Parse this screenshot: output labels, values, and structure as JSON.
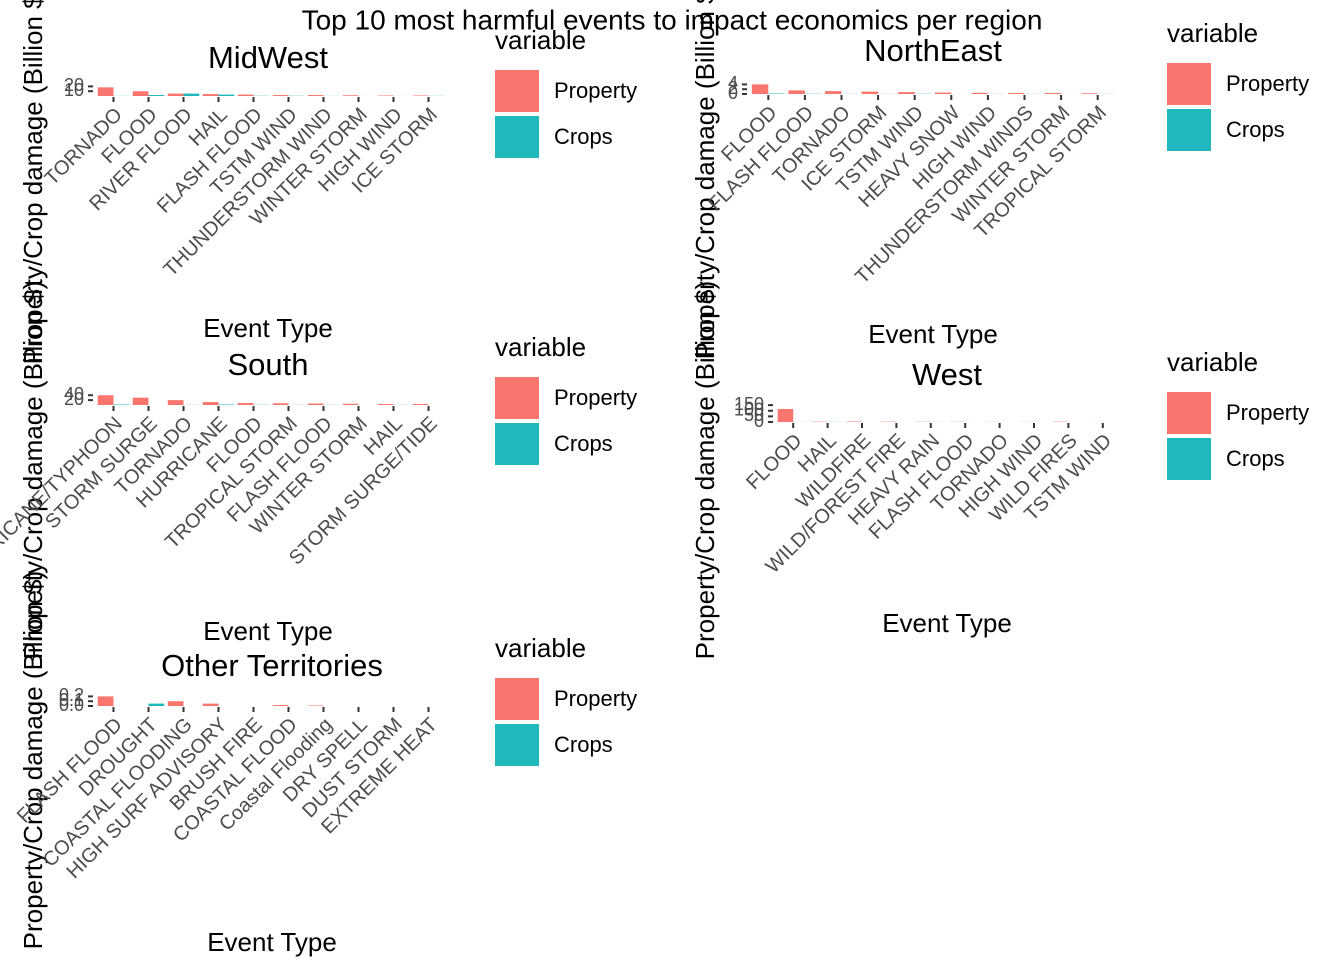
{
  "title": "Top 10 most harmful events to impact economics per region",
  "chart_data": [
    {
      "type": "bar",
      "title": "MidWest",
      "x_label": "Event Type",
      "y_label": "Property/Crop damage (Billion $)",
      "legend_title": "variable",
      "categories": [
        "TORNADO",
        "FLOOD",
        "RIVER FLOOD",
        "HAIL",
        "FLASH FLOOD",
        "TSTM WIND",
        "THUNDERSTORM WIND",
        "WINTER STORM",
        "HIGH WIND",
        "ICE STORM"
      ],
      "series": [
        {
          "name": "Property",
          "color": "#F8766D",
          "values": [
            18,
            10,
            5,
            4,
            3,
            2,
            2,
            1.5,
            1,
            1
          ]
        },
        {
          "name": "Crops",
          "color": "#1FB8BD",
          "values": [
            0.3,
            2,
            5,
            3,
            0.5,
            0.5,
            0.2,
            0.1,
            0.1,
            0.3
          ]
        }
      ],
      "ylim": [
        0,
        25
      ],
      "yticks": [
        10,
        20
      ]
    },
    {
      "type": "bar",
      "title": "NorthEast",
      "x_label": "Event Type",
      "y_label": "Property/Crop damage (Billion $)",
      "legend_title": "variable",
      "categories": [
        "FLOOD",
        "FLASH FLOOD",
        "TORNADO",
        "ICE STORM",
        "TSTM WIND",
        "HEAVY SNOW",
        "HIGH WIND",
        "THUNDERSTORM WINDS",
        "WINTER STORM",
        "TROPICAL STORM"
      ],
      "series": [
        {
          "name": "Property",
          "color": "#F8766D",
          "values": [
            4,
            1.5,
            1.2,
            1,
            0.8,
            0.6,
            0.5,
            0.4,
            0.4,
            0.3
          ]
        },
        {
          "name": "Crops",
          "color": "#1FB8BD",
          "values": [
            0.2,
            0.1,
            0.05,
            0.05,
            0.1,
            0.02,
            0.05,
            0.05,
            0.02,
            0.05
          ]
        }
      ],
      "ylim": [
        0,
        5
      ],
      "yticks": [
        0,
        2,
        4
      ]
    },
    {
      "type": "bar",
      "title": "South",
      "x_label": "Event Type",
      "y_label": "Property/Crop damage (Billion $)",
      "legend_title": "variable",
      "categories": [
        "HURRICANE/TYPHOON",
        "STORM SURGE",
        "TORNADO",
        "HURRICANE",
        "FLOOD",
        "TROPICAL STORM",
        "FLASH FLOOD",
        "WINTER STORM",
        "HAIL",
        "STORM SURGE/TIDE"
      ],
      "series": [
        {
          "name": "Property",
          "color": "#F8766D",
          "values": [
            40,
            30,
            20,
            12,
            8,
            7,
            6,
            5,
            4,
            4
          ]
        },
        {
          "name": "Crops",
          "color": "#1FB8BD",
          "values": [
            2,
            0,
            0.5,
            2,
            1,
            0.5,
            0.5,
            0.1,
            0.5,
            0
          ]
        }
      ],
      "ylim": [
        0,
        45
      ],
      "yticks": [
        20,
        40
      ]
    },
    {
      "type": "bar",
      "title": "West",
      "x_label": "Event Type",
      "y_label": "Property/Crop damage (Billion $)",
      "legend_title": "variable",
      "categories": [
        "FLOOD",
        "HAIL",
        "WILDFIRE",
        "WILD/FOREST FIRE",
        "HEAVY RAIN",
        "FLASH FLOOD",
        "TORNADO",
        "HIGH WIND",
        "WILD FIRES",
        "TSTM WIND"
      ],
      "series": [
        {
          "name": "Property",
          "color": "#F8766D",
          "values": [
            116,
            3,
            4,
            3,
            2,
            1.5,
            1,
            1,
            3,
            0.5
          ]
        },
        {
          "name": "Crops",
          "color": "#1FB8BD",
          "values": [
            0.5,
            1,
            0.1,
            0.1,
            0.5,
            0.3,
            0.1,
            0.2,
            0,
            0.1
          ]
        }
      ],
      "ylim": [
        0,
        160
      ],
      "yticks": [
        0,
        50,
        100,
        150
      ]
    },
    {
      "type": "bar",
      "title": "Other Territories",
      "x_label": "Event Type",
      "y_label": "Property/Crop damage (Billion $)",
      "legend_title": "variable",
      "categories": [
        "FLASH FLOOD",
        "DROUGHT",
        "COASTAL FLOODING",
        "HIGH SURF ADVISORY",
        "BRUSH FIRE",
        "COASTAL FLOOD",
        "Coastal Flooding",
        "DRY SPELL",
        "DUST STORM",
        "EXTREME HEAT"
      ],
      "series": [
        {
          "name": "Property",
          "color": "#F8766D",
          "values": [
            0.2,
            0,
            0.1,
            0.05,
            0,
            0.02,
            0.01,
            0,
            0,
            0
          ]
        },
        {
          "name": "Crops",
          "color": "#1FB8BD",
          "values": [
            0,
            0.05,
            0,
            0,
            0,
            0,
            0,
            0,
            0,
            0
          ]
        }
      ],
      "ylim": [
        0,
        0.25
      ],
      "yticks": [
        {
          "value": 0,
          "label": "0.0"
        },
        0.1,
        0.2
      ]
    }
  ]
}
